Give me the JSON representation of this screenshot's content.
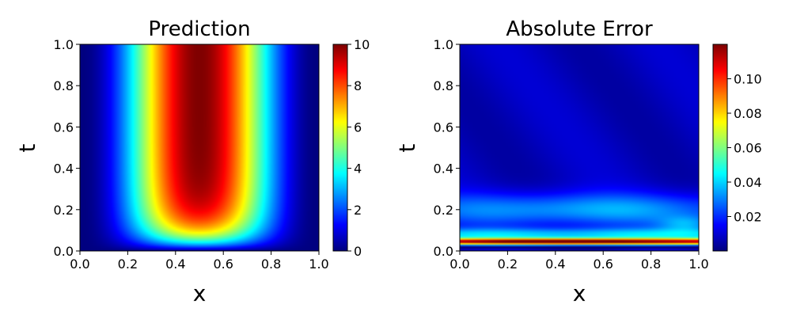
{
  "chart_data": [
    {
      "type": "heatmap",
      "title": "Prediction",
      "xlabel": "x",
      "ylabel": "t",
      "xlim": [
        0,
        1
      ],
      "ylim": [
        0,
        1
      ],
      "xticks": [
        "0.0",
        "0.2",
        "0.4",
        "0.6",
        "0.8",
        "1.0"
      ],
      "yticks": [
        "0.0",
        "0.2",
        "0.4",
        "0.6",
        "0.8",
        "1.0"
      ],
      "colormap": "jet",
      "colorbar": {
        "min": 0,
        "max": 10,
        "ticks": [
          "0",
          "2",
          "4",
          "6",
          "8",
          "10"
        ]
      },
      "description_values": {
        "peak_value": 10,
        "peak_location_x": 0.5,
        "value_at_t0": 0,
        "value_at_x_edges": 0
      }
    },
    {
      "type": "heatmap",
      "title": "Absolute Error",
      "xlabel": "x",
      "ylabel": "t",
      "xlim": [
        0,
        1
      ],
      "ylim": [
        0,
        1
      ],
      "xticks": [
        "0.0",
        "0.2",
        "0.4",
        "0.6",
        "0.8",
        "1.0"
      ],
      "yticks": [
        "0.0",
        "0.2",
        "0.4",
        "0.6",
        "0.8",
        "1.0"
      ],
      "colormap": "jet",
      "colorbar": {
        "min": 0,
        "max": 0.12,
        "ticks": [
          "0.02",
          "0.04",
          "0.06",
          "0.08",
          "0.10"
        ]
      },
      "description_values": {
        "max_error": 0.12,
        "max_error_location": {
          "x": 0.45,
          "t": 0.04
        }
      }
    }
  ]
}
